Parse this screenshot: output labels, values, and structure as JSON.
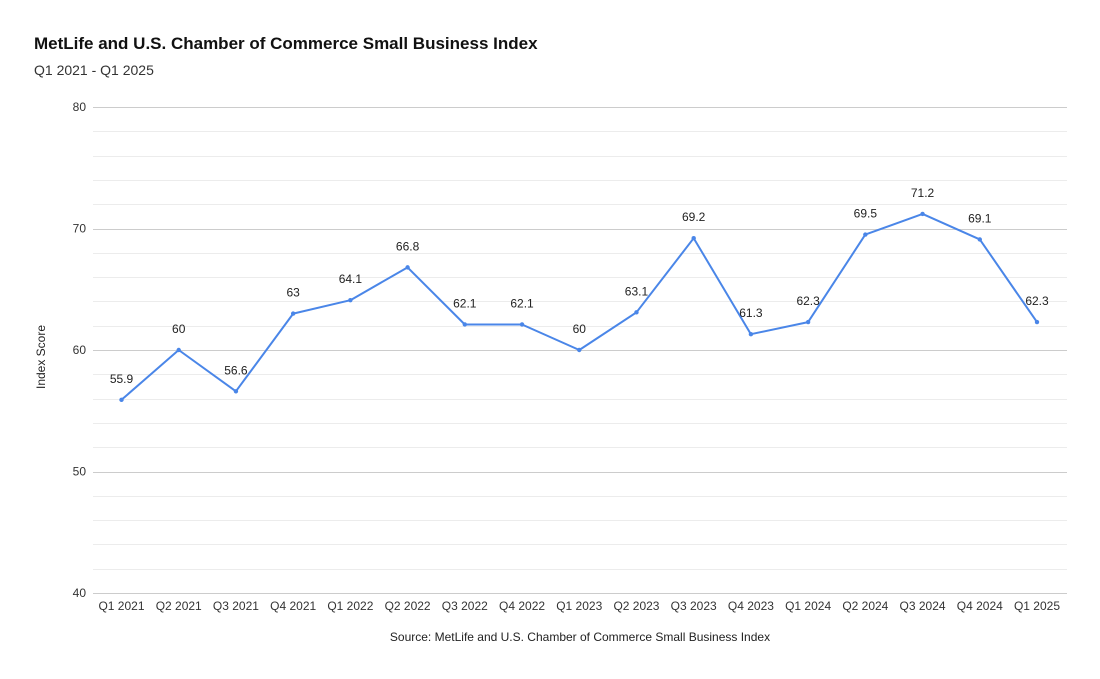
{
  "chart_data": {
    "type": "line",
    "title": "MetLife and U.S. Chamber of Commerce Small Business Index",
    "subtitle": "Q1 2021 - Q1 2025",
    "xlabel": "Source: MetLife and U.S. Chamber of Commerce Small Business Index",
    "ylabel": "Index Score",
    "ylim": [
      40,
      80
    ],
    "yticks": [
      40,
      50,
      60,
      70,
      80
    ],
    "grid": true,
    "legend": "none",
    "categories": [
      "Q1 2021",
      "Q2 2021",
      "Q3 2021",
      "Q4 2021",
      "Q1 2022",
      "Q2 2022",
      "Q3 2022",
      "Q4 2022",
      "Q1 2023",
      "Q2 2023",
      "Q3 2023",
      "Q4 2023",
      "Q1 2024",
      "Q2 2024",
      "Q3 2024",
      "Q4 2024",
      "Q1 2025"
    ],
    "series": [
      {
        "values": [
          55.9,
          60,
          56.6,
          63,
          64.1,
          66.8,
          62.1,
          62.1,
          60,
          63.1,
          69.2,
          61.3,
          62.3,
          69.5,
          71.2,
          69.1,
          62.3
        ],
        "data_labels": [
          "55.9",
          "60",
          "56.6",
          "63",
          "64.1",
          "66.8",
          "62.1",
          "62.1",
          "60",
          "63.1",
          "69.2",
          "61.3",
          "62.3",
          "69.5",
          "71.2",
          "69.1",
          "62.3"
        ],
        "color": "#4a86e8"
      }
    ],
    "colors": {
      "major_grid": "#cccccc",
      "minor_grid": "#ececec",
      "line": "#4a86e8"
    }
  }
}
